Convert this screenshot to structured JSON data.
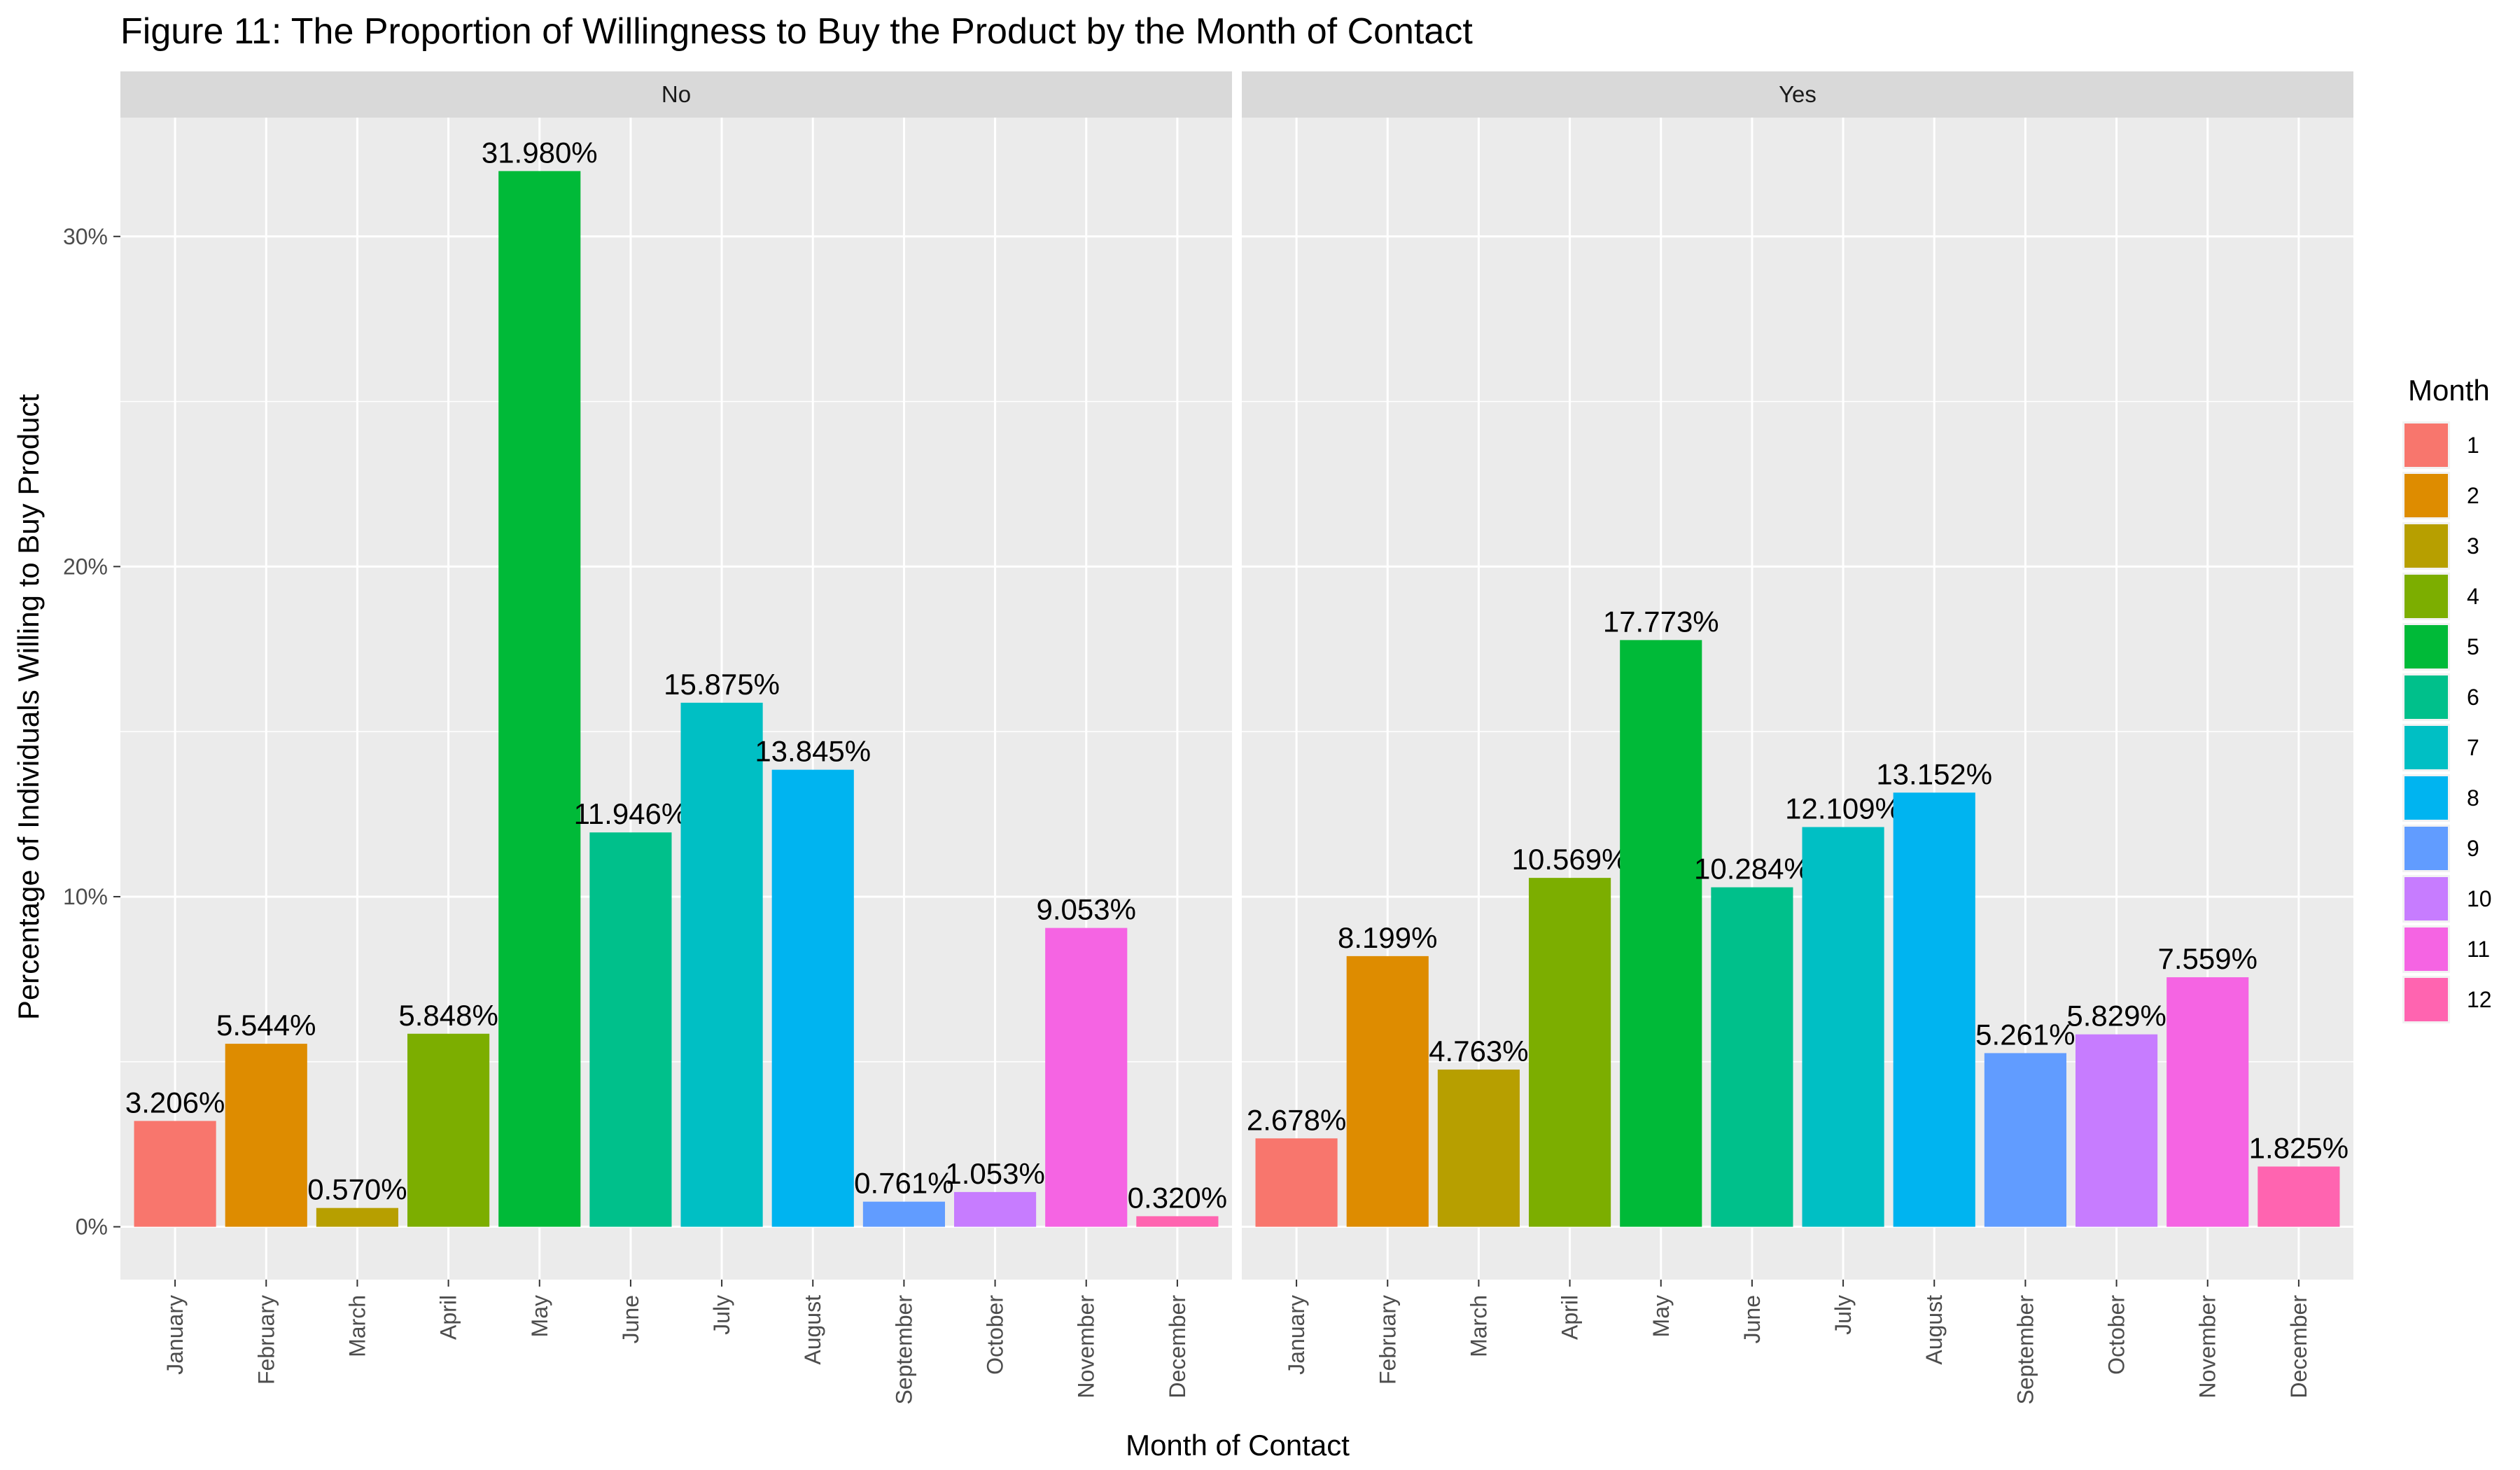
{
  "chart_data": {
    "type": "bar",
    "title": "Figure 11: The Proportion of Willingness to Buy the Product by the Month of Contact",
    "xlabel": "Month of Contact",
    "ylabel": "Percentage of Individuals Willing to Buy Product",
    "categories": [
      "January",
      "February",
      "March",
      "April",
      "May",
      "June",
      "July",
      "August",
      "September",
      "October",
      "November",
      "December"
    ],
    "y_ticks": [
      0,
      10,
      20,
      30
    ],
    "y_tick_labels": [
      "0%",
      "10%",
      "20%",
      "30%"
    ],
    "ylim": [
      -1.6,
      33.6
    ],
    "grid": true,
    "legend": {
      "title": "Month",
      "placement": "right",
      "labels": [
        "1",
        "2",
        "3",
        "4",
        "5",
        "6",
        "7",
        "8",
        "9",
        "10",
        "11",
        "12"
      ]
    },
    "colors": [
      "#F8766D",
      "#DE8C00",
      "#B79F00",
      "#7CAE00",
      "#00BA38",
      "#00C08B",
      "#00BFC4",
      "#00B4F0",
      "#619CFF",
      "#C77CFF",
      "#F564E3",
      "#FF64B0"
    ],
    "panels": [
      {
        "name": "No",
        "values": [
          3.206,
          5.544,
          0.57,
          5.848,
          31.98,
          11.946,
          15.875,
          13.845,
          0.761,
          1.053,
          9.053,
          0.32
        ],
        "labels": [
          "3.206%",
          "5.544%",
          "0.570%",
          "5.848%",
          "31.980%",
          "11.946%",
          "15.875%",
          "13.845%",
          "0.761%",
          "1.053%",
          "9.053%",
          "0.320%"
        ]
      },
      {
        "name": "Yes",
        "values": [
          2.678,
          8.199,
          4.763,
          10.569,
          17.773,
          10.284,
          12.109,
          13.152,
          5.261,
          5.829,
          7.559,
          1.825
        ],
        "labels": [
          "2.678%",
          "8.199%",
          "4.763%",
          "10.569%",
          "17.773%",
          "10.284%",
          "12.109%",
          "13.152%",
          "5.261%",
          "5.829%",
          "7.559%",
          "1.825%"
        ]
      }
    ]
  }
}
